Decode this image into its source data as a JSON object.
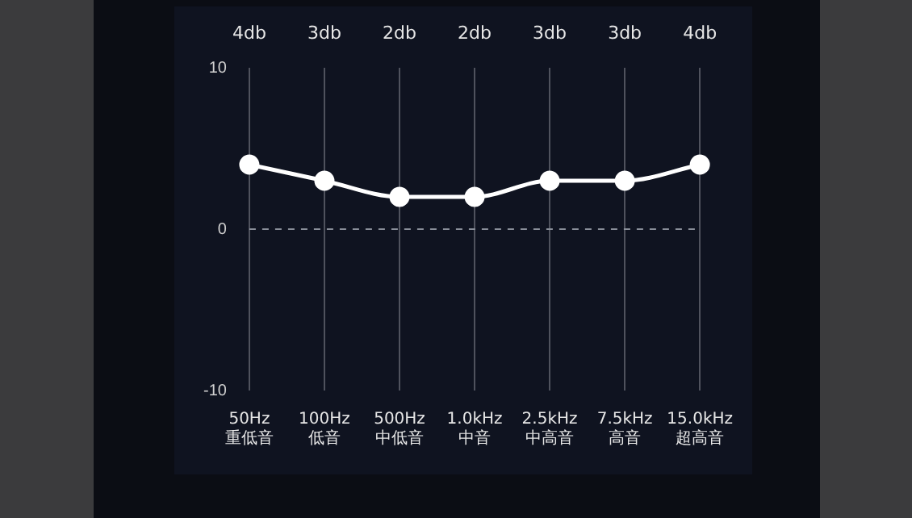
{
  "chart_data": {
    "type": "line",
    "categories": [
      "50Hz\n重低音",
      "100Hz\n低音",
      "500Hz\n中低音",
      "1.0kHz\n中音",
      "2.5kHz\n中高音",
      "7.5kHz\n高音",
      "15.0kHz\n超高音"
    ],
    "series": [
      {
        "color": "#ffffff",
        "values": [
          4,
          3,
          2,
          2,
          3,
          3,
          4
        ]
      }
    ],
    "value_labels": [
      "4db",
      "3db",
      "2db",
      "2db",
      "3db",
      "3db",
      "4db"
    ],
    "ylim": [
      -10,
      10
    ],
    "yticks": [
      -10,
      0,
      10
    ],
    "grid": "x",
    "legend": false,
    "marker": "circle",
    "line_style": "solid",
    "ref_lines": [
      {
        "axis": "y",
        "value": 0,
        "color": "#8a8f9a",
        "line_style": "dashed"
      }
    ]
  }
}
